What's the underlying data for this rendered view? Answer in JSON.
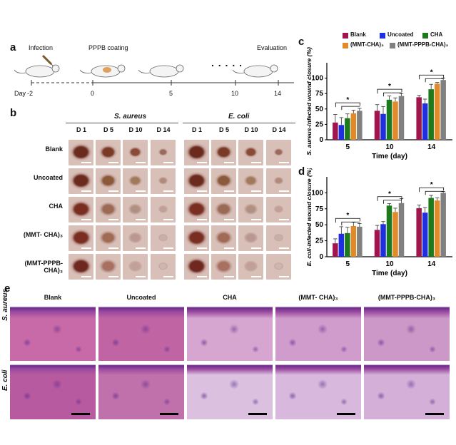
{
  "panel_labels": {
    "a": "a",
    "b": "b",
    "c": "c",
    "d": "d",
    "e": "e"
  },
  "timeline": {
    "infection": "Infection",
    "coating": "PPPB coating",
    "evaluation": "Evaluation",
    "dots": ". . . . .",
    "day_label": "Day",
    "days": [
      "-2",
      "0",
      "5",
      "10",
      "14"
    ]
  },
  "photos": {
    "group_left": "S. aureus",
    "group_right": "E. coli",
    "day_cols": [
      "D 1",
      "D 5",
      "D 10",
      "D 14"
    ],
    "rows": [
      "Blank",
      "Uncoated",
      "CHA",
      "(MMT- CHA)₃",
      "(MMT-PPPB-CHA)₃"
    ]
  },
  "legend": {
    "items": [
      {
        "name": "Blank",
        "color": "#a0154e"
      },
      {
        "name": "Uncoated",
        "color": "#1f2fe0"
      },
      {
        "name": "CHA",
        "color": "#1c7a1c"
      },
      {
        "name": "(MMT-CHA)₃",
        "color": "#e08a2a"
      },
      {
        "name": "(MMT-PPPB-CHA)₃",
        "color": "#808080"
      }
    ]
  },
  "chart_data": [
    {
      "type": "bar",
      "panel": "c",
      "categories": [
        "5",
        "10",
        "14"
      ],
      "xlabel": "Time (day)",
      "ylabel": "S. aureus-infected wound closure (%)",
      "yticks": [
        "0",
        "25",
        "50",
        "75",
        "100"
      ],
      "ylim": [
        0,
        125
      ],
      "series": [
        {
          "name": "Blank",
          "values": [
            28,
            47,
            69
          ],
          "err": [
            13,
            10,
            3
          ]
        },
        {
          "name": "Uncoated",
          "values": [
            24,
            42,
            59
          ],
          "err": [
            12,
            12,
            7
          ]
        },
        {
          "name": "CHA",
          "values": [
            35,
            65,
            82
          ],
          "err": [
            7,
            6,
            8
          ]
        },
        {
          "name": "(MMT-CHA)₃",
          "values": [
            43,
            62,
            91
          ],
          "err": [
            5,
            6,
            2
          ]
        },
        {
          "name": "(MMT-PPPB-CHA)₃",
          "values": [
            47,
            71,
            97
          ],
          "err": [
            4,
            4,
            3
          ]
        }
      ],
      "sig": "*"
    },
    {
      "type": "bar",
      "panel": "d",
      "categories": [
        "5",
        "10",
        "14"
      ],
      "xlabel": "Time (day)",
      "ylabel": "E. coli-infected wound closure (%)",
      "yticks": [
        "0",
        "25",
        "50",
        "75",
        "100"
      ],
      "ylim": [
        0,
        125
      ],
      "series": [
        {
          "name": "Blank",
          "values": [
            21,
            42,
            76
          ],
          "err": [
            7,
            7,
            5
          ]
        },
        {
          "name": "Uncoated",
          "values": [
            36,
            51,
            69
          ],
          "err": [
            11,
            4,
            8
          ]
        },
        {
          "name": "CHA",
          "values": [
            37,
            80,
            92
          ],
          "err": [
            9,
            3,
            4
          ]
        },
        {
          "name": "(MMT-CHA)₃",
          "values": [
            48,
            70,
            88
          ],
          "err": [
            6,
            6,
            4
          ]
        },
        {
          "name": "(MMT-PPPB-CHA)₃",
          "values": [
            47,
            84,
            100
          ],
          "err": [
            5,
            7,
            2
          ]
        }
      ],
      "sig": "*"
    }
  ],
  "histology": {
    "cols": [
      "Blank",
      "Uncoated",
      "CHA",
      "(MMT- CHA)₃",
      "(MMT-PPPB-CHA)₃"
    ],
    "rows": [
      "S. aureus",
      "E. coli"
    ]
  }
}
